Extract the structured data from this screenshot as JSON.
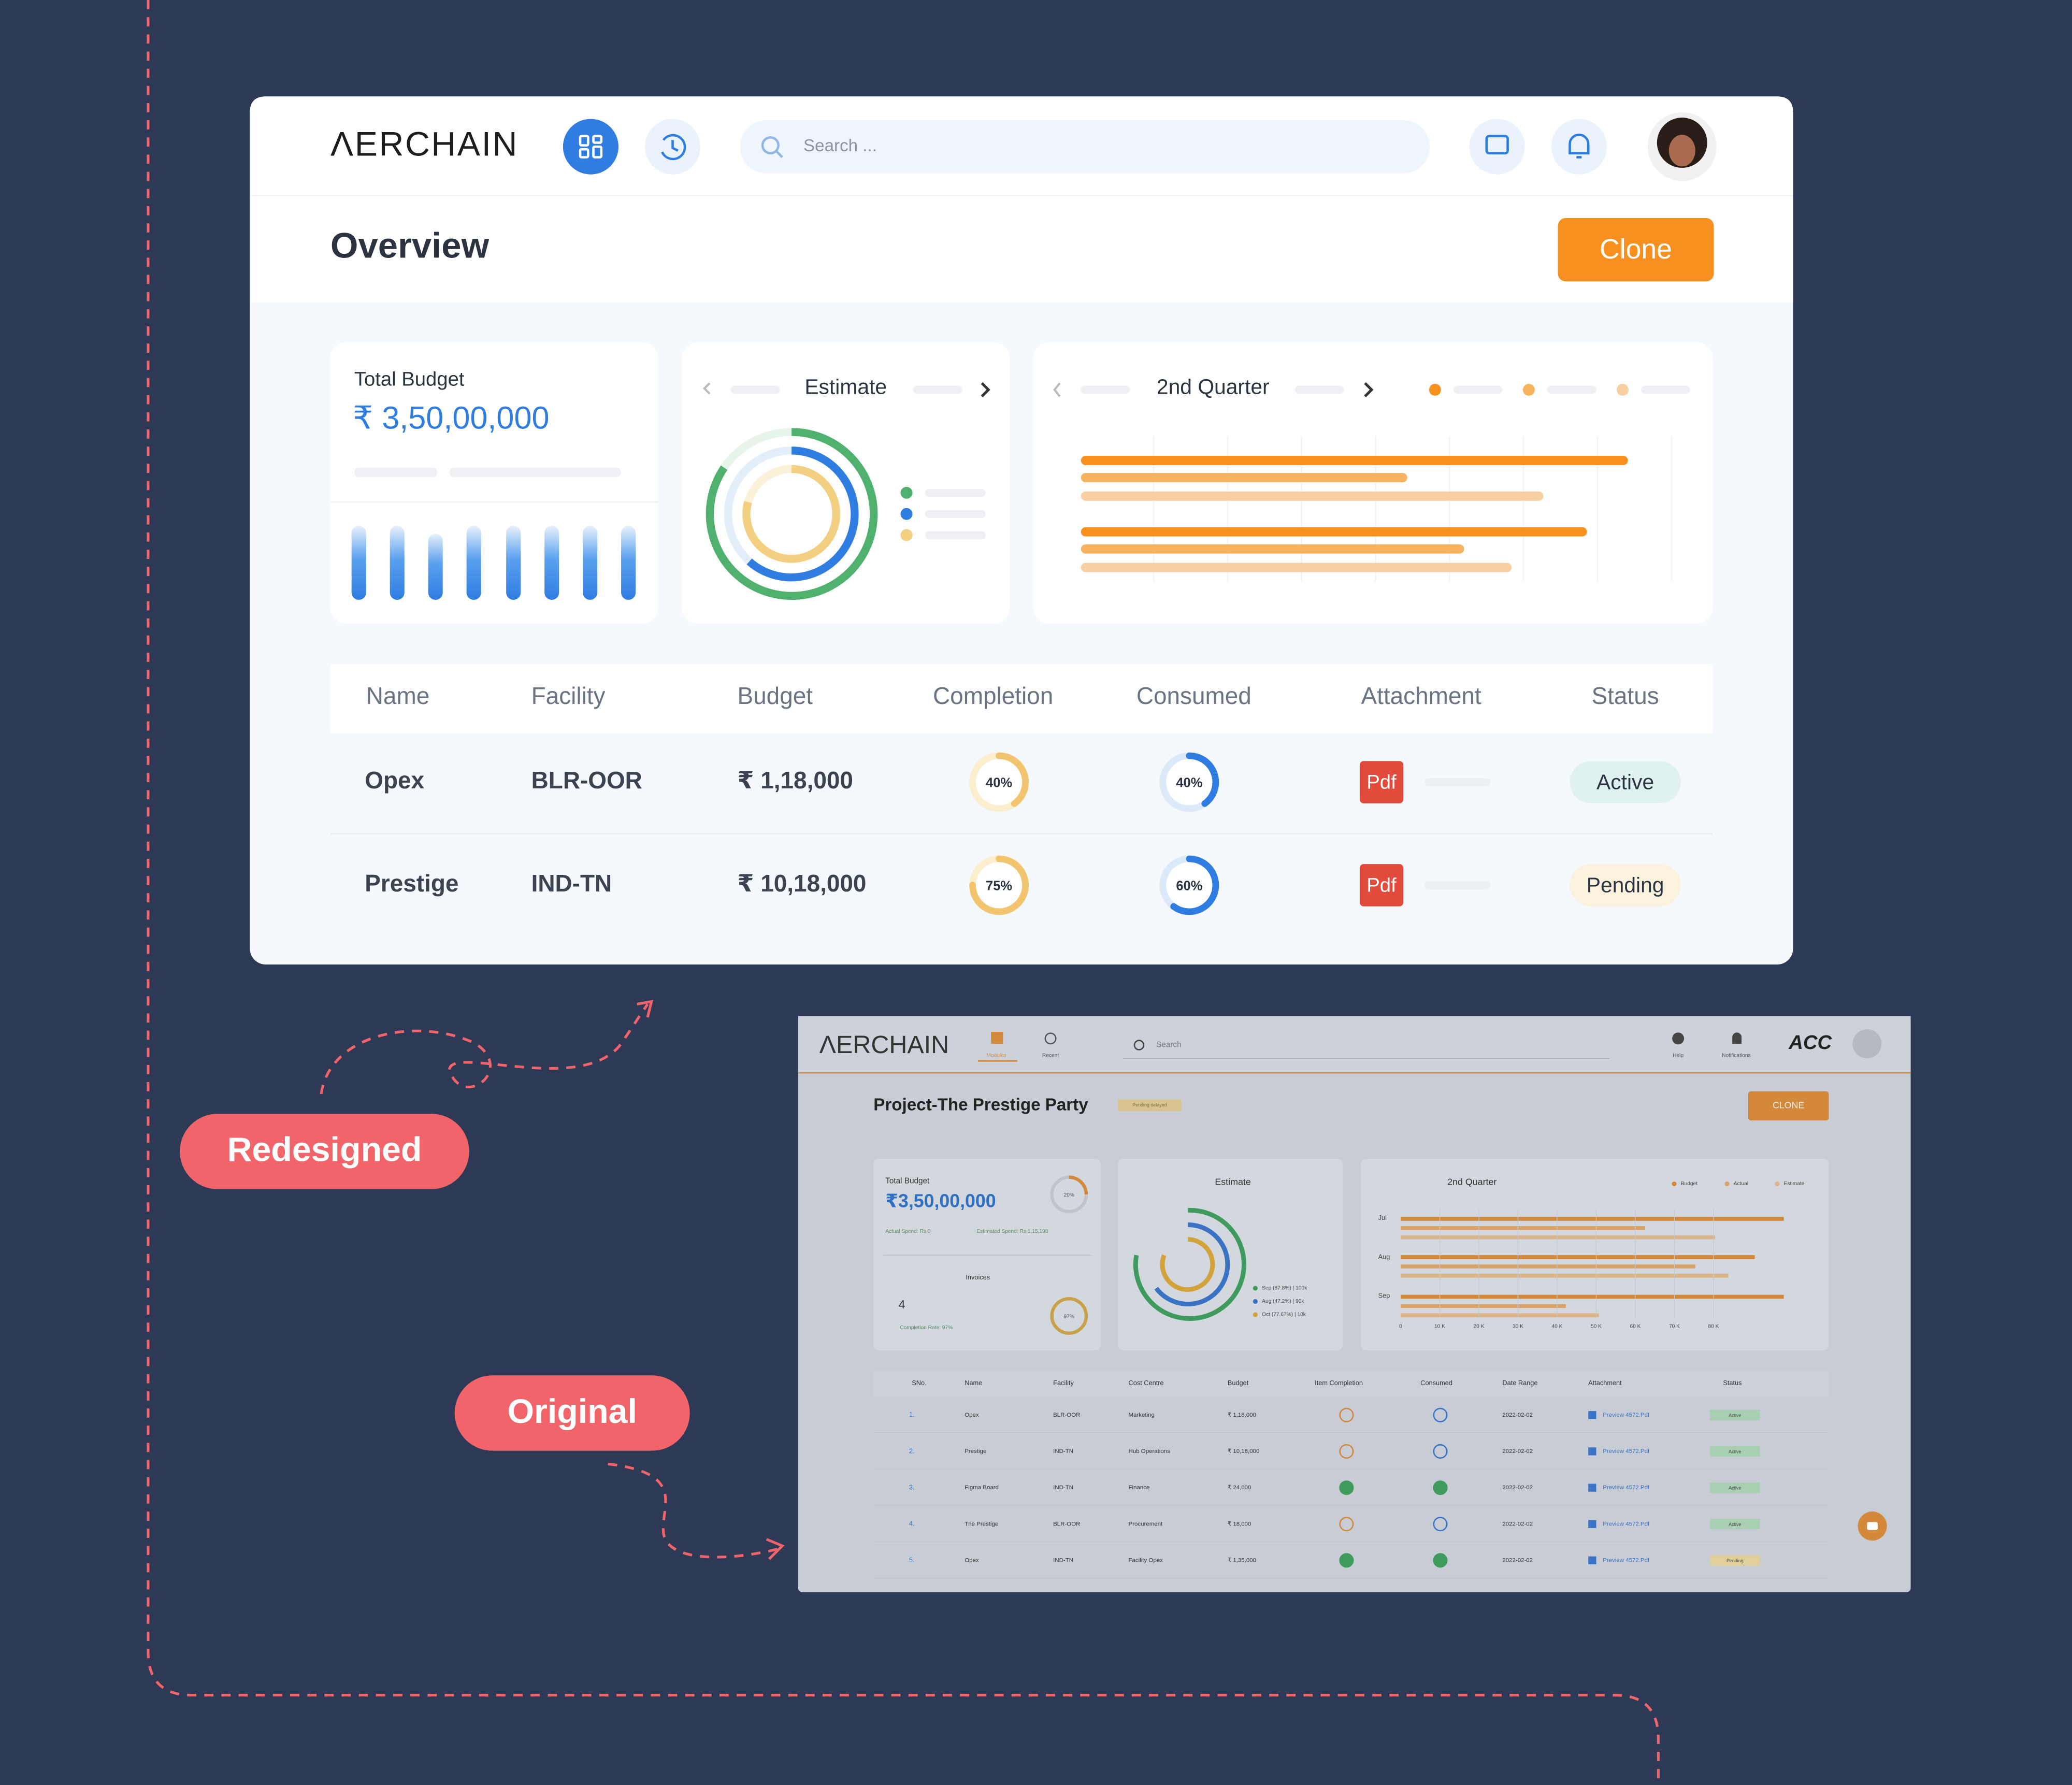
{
  "labels": {
    "redesigned": "Redesigned",
    "original": "Original"
  },
  "redesign": {
    "header": {
      "logo": "ΛERCHAIN",
      "search_placeholder": "Search ..."
    },
    "overview": {
      "title": "Overview",
      "button": "Clone"
    },
    "total_budget": {
      "label": "Total Budget",
      "amount": "₹ 3,50,00,000"
    },
    "estimate": {
      "title": "Estimate"
    },
    "quarter": {
      "title": "2nd Quarter"
    },
    "table": {
      "columns": [
        "Name",
        "Facility",
        "Budget",
        "Completion",
        "Consumed",
        "Attachment",
        "Status"
      ],
      "rows": [
        {
          "name": "Opex",
          "facility": "BLR-OOR",
          "budget": "₹ 1,18,000",
          "completion": {
            "value": 40,
            "label": "40%"
          },
          "consumed": {
            "value": 40,
            "label": "40%"
          },
          "attachment": "Pdf",
          "status": "Active"
        },
        {
          "name": "Prestige",
          "facility": "IND-TN",
          "budget": "₹ 10,18,000",
          "completion": {
            "value": 75,
            "label": "75%"
          },
          "consumed": {
            "value": 60,
            "label": "60%"
          },
          "attachment": "Pdf",
          "status": "Pending"
        }
      ]
    }
  },
  "original": {
    "nav": {
      "logo": "ΛERCHAIN",
      "modules": "Modules",
      "recent": "Recent",
      "search": "Search",
      "help": "Help",
      "notifications": "Notifications",
      "account": "ACC"
    },
    "title": "Project-The Prestige Party",
    "badge": "Pending delayed",
    "button": "CLONE",
    "total_budget": {
      "label": "Total Budget",
      "amount": "₹3,50,00,000",
      "progress": "20%",
      "actual": "Actual Spend: Rs 0",
      "estimated": "Estimated Spend: Rs 1,15,198",
      "tab": "Invoices",
      "count": "4",
      "rate": "Completion Rate: 97%",
      "rate_ring": "97%"
    },
    "estimate": {
      "title": "Estimate",
      "legend": [
        "Sep (87.8%) | 100k",
        "Aug (47.2%) | 90k",
        "Oct (77.67%) | 10k"
      ]
    },
    "quarter": {
      "title": "2nd Quarter",
      "legend": [
        "Budget",
        "Actual",
        "Estimate"
      ],
      "months": [
        "Jul",
        "Aug",
        "Sep"
      ],
      "axis": [
        "0",
        "10 K",
        "20 K",
        "30 K",
        "40 K",
        "50 K",
        "60 K",
        "70 K",
        "80 K"
      ]
    },
    "table": {
      "columns": [
        "SNo.",
        "Name",
        "Facility",
        "Cost Centre",
        "Budget",
        "Item Completion",
        "Consumed",
        "Date Range",
        "Attachment",
        "Status"
      ],
      "rows": [
        [
          "1.",
          "Opex",
          "BLR-OOR",
          "Marketing",
          "₹ 1,18,000",
          "2022-02-02",
          "Preview 4572.Pdf",
          "Active"
        ],
        [
          "2.",
          "Prestige",
          "IND-TN",
          "Hub Operations",
          "₹ 10,18,000",
          "2022-02-02",
          "Preview 4572.Pdf",
          "Active"
        ],
        [
          "3.",
          "Figma Board",
          "IND-TN",
          "Finance",
          "₹ 24,000",
          "2022-02-02",
          "Preview 4572.Pdf",
          "Active"
        ],
        [
          "4.",
          "The Prestige",
          "BLR-OOR",
          "Procurement",
          "₹ 18,000",
          "2022-02-02",
          "Preview 4572.Pdf",
          "Active"
        ],
        [
          "5.",
          "Opex",
          "IND-TN",
          "Facility Opex",
          "₹ 1,35,000",
          "2022-02-02",
          "Preview 4572.Pdf",
          "Pending"
        ]
      ]
    }
  }
}
